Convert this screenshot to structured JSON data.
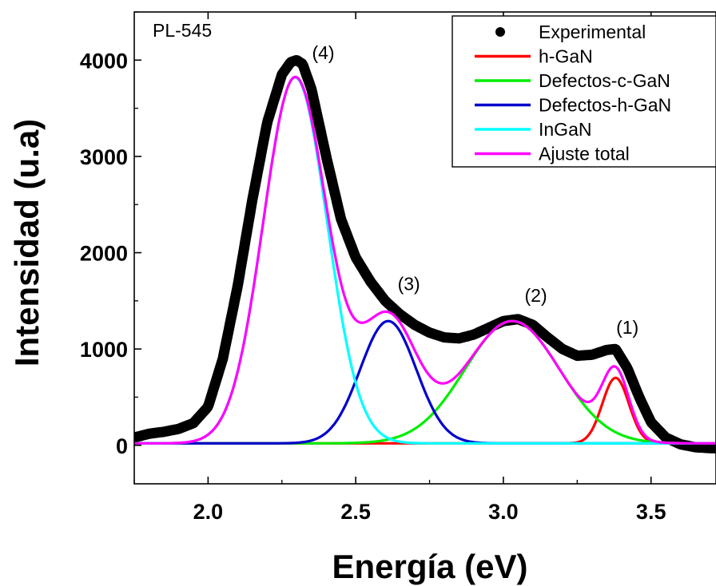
{
  "chart_data": {
    "type": "line",
    "title": "",
    "xlabel": "Energía (eV)",
    "ylabel": "Intensidad (u.a)",
    "xlim": [
      1.75,
      3.72
    ],
    "ylim": [
      -400,
      4500
    ],
    "x_ticks": [
      2.0,
      2.5,
      3.0,
      3.5
    ],
    "x_tick_labels": [
      "2.0",
      "2.5",
      "3.0",
      "3.5"
    ],
    "y_ticks": [
      0,
      1000,
      2000,
      3000,
      4000
    ],
    "y_tick_labels": [
      "0",
      "1000",
      "2000",
      "3000",
      "4000"
    ],
    "grid": false,
    "legend_position": "top-right",
    "sample_label": "PL-545",
    "annotations": [
      {
        "text": "(4)",
        "x": 2.39,
        "y": 4010
      },
      {
        "text": "(3)",
        "x": 2.68,
        "y": 1610
      },
      {
        "text": "(2)",
        "x": 3.11,
        "y": 1490
      },
      {
        "text": "(1)",
        "x": 3.42,
        "y": 1160
      }
    ],
    "series": [
      {
        "name": "Experimental",
        "kind": "points",
        "color": "#000000",
        "x": [
          1.75,
          1.8,
          1.85,
          1.9,
          1.95,
          2.0,
          2.05,
          2.1,
          2.15,
          2.2,
          2.25,
          2.28,
          2.3,
          2.32,
          2.35,
          2.4,
          2.45,
          2.5,
          2.55,
          2.6,
          2.65,
          2.7,
          2.75,
          2.8,
          2.85,
          2.9,
          2.95,
          3.0,
          3.05,
          3.1,
          3.15,
          3.2,
          3.25,
          3.3,
          3.35,
          3.38,
          3.42,
          3.46,
          3.5,
          3.55,
          3.6,
          3.65,
          3.7,
          3.72
        ],
        "y": [
          80,
          120,
          140,
          170,
          230,
          400,
          900,
          1650,
          2550,
          3350,
          3850,
          3980,
          4000,
          3960,
          3700,
          3000,
          2350,
          1950,
          1700,
          1500,
          1360,
          1250,
          1170,
          1120,
          1110,
          1150,
          1220,
          1290,
          1310,
          1250,
          1120,
          1000,
          930,
          940,
          990,
          1000,
          800,
          500,
          240,
          80,
          10,
          -20,
          -30,
          -30
        ]
      },
      {
        "name": "h-GaN",
        "kind": "gaussian",
        "color": "#ff0000",
        "amplitude": 680,
        "center": 3.38,
        "sigma": 0.045,
        "offset": 20
      },
      {
        "name": "Defectos-c-GaN",
        "kind": "gaussian",
        "color": "#00ee00",
        "amplitude": 1270,
        "center": 3.03,
        "sigma": 0.16,
        "offset": 20
      },
      {
        "name": "Defectos-h-GaN",
        "kind": "gaussian",
        "color": "#0000cc",
        "amplitude": 1270,
        "center": 2.61,
        "sigma": 0.095,
        "offset": 20
      },
      {
        "name": "InGaN",
        "kind": "gaussian",
        "color": "#00ffff",
        "amplitude": 3800,
        "center": 2.295,
        "sigma": 0.108,
        "offset": 20
      },
      {
        "name": "Ajuste total",
        "kind": "sum",
        "color": "#ff00ff",
        "offset": 20
      }
    ]
  }
}
